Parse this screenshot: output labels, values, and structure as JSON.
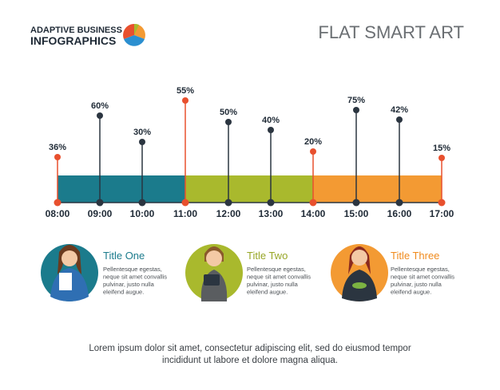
{
  "header": {
    "brand_top": "ADAPTIVE BUSINESS",
    "brand_bottom": "INFOGRAPHICS",
    "title": "FLAT SMART ART"
  },
  "timeline": [
    {
      "time": "08:00",
      "label": "36%"
    },
    {
      "time": "09:00",
      "label": "60%"
    },
    {
      "time": "10:00",
      "label": "30%"
    },
    {
      "time": "11:00",
      "label": "55%"
    },
    {
      "time": "12:00",
      "label": "50%"
    },
    {
      "time": "13:00",
      "label": "40%"
    },
    {
      "time": "14:00",
      "label": "20%"
    },
    {
      "time": "15:00",
      "label": "75%"
    },
    {
      "time": "16:00",
      "label": "42%"
    },
    {
      "time": "17:00",
      "label": "15%"
    }
  ],
  "cards": [
    {
      "title": "Title One",
      "lines": [
        "Pellentesque egestas,",
        "neque sit amet convallis",
        "pulvinar, justo nulla",
        "eleifend augue."
      ]
    },
    {
      "title": "Title Two",
      "lines": [
        "Pellentesque egestas,",
        "neque sit amet convallis",
        "pulvinar, justo nulla",
        "eleifend augue."
      ]
    },
    {
      "title": "Title Three",
      "lines": [
        "Pellentesque egestas,",
        "neque sit amet convallis",
        "pulvinar, justo nulla",
        "eleifend augue."
      ]
    }
  ],
  "footer": [
    "Lorem ipsum dolor sit amet, consectetur adipiscing elit, sed do eiusmod tempor",
    "incididunt ut labore et dolore magna aliqua."
  ]
}
